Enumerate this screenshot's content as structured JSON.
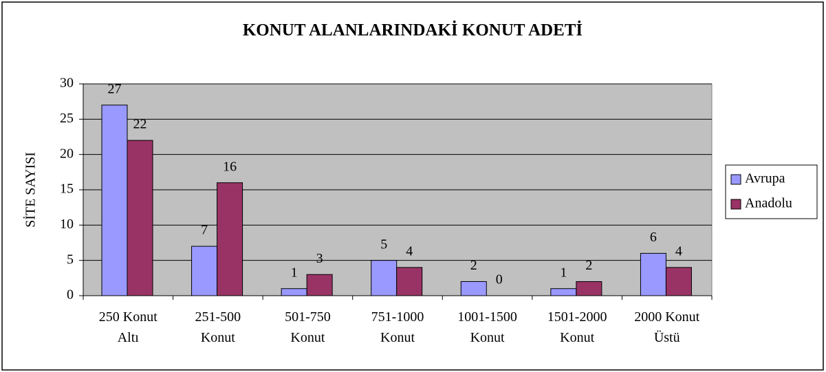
{
  "chart_data": {
    "type": "bar",
    "title": "KONUT ALANLARINDAKİ KONUT ADETİ",
    "y_label": "SİTE SAYISI",
    "categories": [
      [
        "250 Konut",
        "Altı"
      ],
      [
        "251-500",
        "Konut"
      ],
      [
        "501-750",
        "Konut"
      ],
      [
        "751-1000",
        "Konut"
      ],
      [
        "1001-1500",
        "Konut"
      ],
      [
        "1501-2000",
        "Konut"
      ],
      [
        "2000 Konut",
        "Üstü"
      ]
    ],
    "series": [
      {
        "name": "Avrupa",
        "color": "#9999ff",
        "values": [
          27,
          7,
          1,
          5,
          2,
          1,
          6
        ]
      },
      {
        "name": "Anadolu",
        "color": "#993366",
        "values": [
          22,
          16,
          3,
          4,
          0,
          2,
          4
        ]
      }
    ],
    "ylim": [
      0,
      30
    ],
    "yticks": [
      0,
      5,
      10,
      15,
      20,
      25,
      30
    ],
    "grid": true,
    "legend": "right",
    "plot_background": "#c0c0c0"
  }
}
